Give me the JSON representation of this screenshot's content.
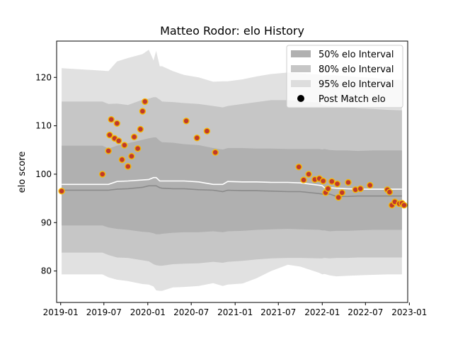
{
  "chart_data": {
    "type": "line",
    "title": "Matteo Rodor: elo History",
    "xlabel": "",
    "ylabel": "elo score",
    "x_type": "date",
    "xlim": [
      "2018-12-15",
      "2022-12-25"
    ],
    "ylim": [
      73.5,
      127.5
    ],
    "x_ticks": [
      {
        "value": "2019-01-01",
        "label": "2019-01"
      },
      {
        "value": "2019-07-01",
        "label": "2019-07"
      },
      {
        "value": "2020-01-01",
        "label": "2020-01"
      },
      {
        "value": "2020-07-01",
        "label": "2020-07"
      },
      {
        "value": "2021-01-01",
        "label": "2021-01"
      },
      {
        "value": "2021-07-01",
        "label": "2021-07"
      },
      {
        "value": "2022-01-01",
        "label": "2022-01"
      },
      {
        "value": "2022-07-01",
        "label": "2022-07"
      },
      {
        "value": "2023-01-01",
        "label": "2023-01"
      }
    ],
    "y_ticks": [
      80,
      90,
      100,
      110,
      120
    ],
    "grid": false,
    "legend_position": "top-right",
    "legend": [
      {
        "label": "50% elo Interval",
        "kind": "band",
        "color": "#b0b0b0"
      },
      {
        "label": "80% elo Interval",
        "kind": "band",
        "color": "#c6c6c6"
      },
      {
        "label": "95% elo Interval",
        "kind": "band",
        "color": "#dddddd"
      },
      {
        "label": "Post Match elo",
        "kind": "marker",
        "color": "#000000"
      }
    ],
    "colors": {
      "band50": "#b0b0b0",
      "band80": "#c6c6c6",
      "band95": "#e1e1e1",
      "median_line": "#8a8a8a",
      "mean_line": "#ffffff",
      "point_fill": "#c0392b",
      "point_edge": "#f5b800"
    },
    "bands": {
      "x": [
        "2019-01-05",
        "2019-06-25",
        "2019-07-20",
        "2019-08-25",
        "2019-10-10",
        "2019-12-10",
        "2020-01-05",
        "2020-01-25",
        "2020-02-05",
        "2020-02-20",
        "2020-03-01",
        "2020-04-15",
        "2020-06-01",
        "2020-08-01",
        "2020-10-01",
        "2020-11-10",
        "2020-12-01",
        "2021-02-01",
        "2021-04-01",
        "2021-06-01",
        "2021-08-10",
        "2021-10-01",
        "2021-12-20",
        "2022-01-01",
        "2022-01-10",
        "2022-02-01",
        "2022-03-01",
        "2022-04-15",
        "2022-06-01",
        "2022-08-01",
        "2022-10-01",
        "2022-12-01"
      ],
      "lo95": [
        79.3,
        79.3,
        78.7,
        78.2,
        77.9,
        77.3,
        77.2,
        76.8,
        76.0,
        75.9,
        75.9,
        76.6,
        76.7,
        76.9,
        77.5,
        76.9,
        77.2,
        77.4,
        78.5,
        80.0,
        81.3,
        80.9,
        79.6,
        79.3,
        79.4,
        79.1,
        78.9,
        79.0,
        79.1,
        79.2,
        79.3,
        79.3
      ],
      "lo80": [
        83.8,
        83.8,
        83.3,
        82.8,
        82.7,
        82.2,
        82.0,
        81.4,
        81.2,
        81.1,
        81.1,
        81.4,
        81.5,
        81.6,
        81.9,
        81.7,
        81.9,
        82.1,
        82.4,
        82.6,
        82.7,
        82.7,
        82.6,
        82.6,
        82.7,
        82.6,
        82.7,
        82.7,
        82.8,
        82.8,
        82.8,
        82.8
      ],
      "lo50": [
        89.4,
        89.4,
        89.0,
        88.7,
        88.5,
        88.1,
        88.0,
        87.8,
        87.6,
        87.6,
        87.7,
        87.9,
        88.0,
        88.0,
        88.2,
        88.0,
        88.2,
        88.3,
        88.5,
        88.6,
        88.7,
        88.6,
        88.5,
        88.4,
        88.4,
        88.2,
        88.3,
        88.3,
        88.4,
        88.5,
        88.5,
        88.5
      ],
      "median": [
        96.7,
        96.7,
        96.7,
        96.9,
        97.0,
        97.3,
        97.6,
        97.6,
        97.6,
        97.2,
        97.1,
        97.0,
        97.0,
        96.8,
        96.7,
        96.4,
        96.7,
        96.6,
        96.6,
        96.5,
        96.4,
        96.4,
        96.0,
        95.9,
        95.8,
        95.9,
        95.4,
        95.4,
        95.5,
        95.5,
        95.5,
        95.5
      ],
      "mean": [
        97.9,
        97.9,
        97.9,
        98.5,
        98.6,
        98.8,
        98.9,
        99.3,
        99.3,
        98.6,
        98.6,
        98.6,
        98.6,
        98.4,
        97.9,
        97.9,
        98.5,
        98.4,
        98.4,
        98.3,
        98.3,
        98.2,
        97.7,
        97.6,
        97.2,
        97.2,
        97.1,
        97.0,
        96.9,
        96.9,
        96.9,
        96.9
      ],
      "hi50": [
        105.9,
        105.9,
        105.3,
        105.9,
        106.4,
        107.1,
        107.4,
        107.6,
        107.6,
        106.9,
        106.6,
        106.5,
        106.2,
        106.0,
        105.4,
        105.1,
        105.4,
        105.4,
        105.3,
        105.3,
        105.2,
        105.2,
        105.2,
        105.1,
        105.2,
        105.0,
        104.9,
        104.9,
        104.8,
        104.9,
        104.9,
        104.9
      ],
      "hi80": [
        115.0,
        115.0,
        114.5,
        114.6,
        114.3,
        115.4,
        115.6,
        115.9,
        115.9,
        115.4,
        115.0,
        114.9,
        114.7,
        114.5,
        114.1,
        113.8,
        114.1,
        114.5,
        114.9,
        115.3,
        115.3,
        115.0,
        114.8,
        114.3,
        114.2,
        114.1,
        113.9,
        113.8,
        113.6,
        113.5,
        113.3,
        113.2
      ],
      "hi95": [
        121.9,
        121.4,
        121.3,
        123.3,
        124.0,
        124.8,
        125.7,
        123.5,
        125.5,
        122.3,
        122.3,
        121.3,
        120.5,
        120.0,
        119.1,
        119.2,
        119.2,
        119.6,
        120.2,
        120.7,
        121.0,
        120.8,
        120.6,
        120.3,
        120.4,
        120.5,
        120.4,
        120.3,
        120.1,
        119.9,
        119.6,
        119.5
      ]
    },
    "series": [
      {
        "name": "Post Match elo",
        "x": [
          "2019-01-05",
          "2019-06-25",
          "2019-07-20",
          "2019-07-25",
          "2019-08-01",
          "2019-08-15",
          "2019-08-25",
          "2019-09-01",
          "2019-09-15",
          "2019-09-25",
          "2019-10-10",
          "2019-10-25",
          "2019-11-05",
          "2019-11-20",
          "2019-12-01",
          "2019-12-10",
          "2019-12-20",
          "2020-06-10",
          "2020-07-25",
          "2020-09-05",
          "2020-10-10",
          "2021-09-25",
          "2021-10-15",
          "2021-11-05",
          "2021-12-01",
          "2021-12-20",
          "2022-01-05",
          "2022-01-15",
          "2022-01-25",
          "2022-02-10",
          "2022-03-05",
          "2022-03-10",
          "2022-03-25",
          "2022-04-20",
          "2022-05-20",
          "2022-06-10",
          "2022-07-20",
          "2022-10-01",
          "2022-10-10",
          "2022-10-20",
          "2022-11-01",
          "2022-11-20",
          "2022-12-01",
          "2022-12-10"
        ],
        "values": [
          96.5,
          100.0,
          104.8,
          108.1,
          111.3,
          107.4,
          110.5,
          106.9,
          103.0,
          106.0,
          101.6,
          103.7,
          107.7,
          105.3,
          109.3,
          113.0,
          115.0,
          111.0,
          107.5,
          108.9,
          104.5,
          101.5,
          98.8,
          100.0,
          98.9,
          99.1,
          98.6,
          96.2,
          97.0,
          98.5,
          98.0,
          95.2,
          96.2,
          98.3,
          96.8,
          97.0,
          97.7,
          96.8,
          96.3,
          93.6,
          94.3,
          93.9,
          94.0,
          93.6
        ]
      }
    ]
  }
}
